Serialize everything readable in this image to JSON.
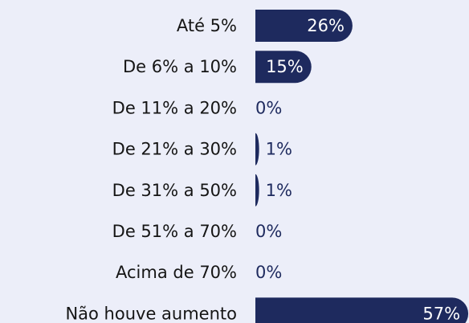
{
  "chart_data": {
    "type": "bar",
    "orientation": "horizontal",
    "categories": [
      "Até 5%",
      "De 6% a 10%",
      "De 11% a 20%",
      "De 21% a 30%",
      "De 31% a 50%",
      "De 51% a 70%",
      "Acima de 70%",
      "Não houve aumento"
    ],
    "values": [
      26,
      15,
      0,
      1,
      1,
      0,
      0,
      57
    ],
    "value_labels": [
      "26%",
      "15%",
      "0%",
      "1%",
      "1%",
      "0%",
      "0%",
      "57%"
    ],
    "color": "#1e2a5e"
  }
}
